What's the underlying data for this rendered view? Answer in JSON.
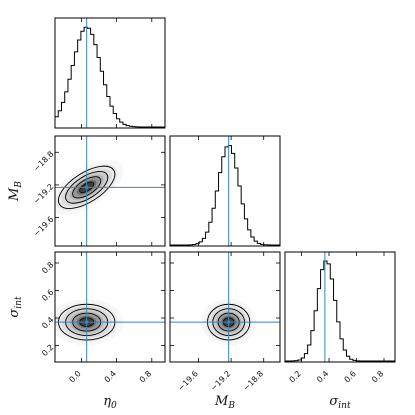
{
  "chart_data": {
    "type": "corner",
    "parameters": [
      {
        "key": "eta0",
        "label": "η",
        "subscript": "0",
        "range": [
          -0.3,
          0.95
        ],
        "ticks": [
          0.0,
          0.4,
          0.8
        ],
        "tick_labels": [
          "0.0",
          "0.4",
          "0.8"
        ],
        "truth": 0.06,
        "mean": 0.06,
        "sd": 0.16
      },
      {
        "key": "MB",
        "label": "M",
        "subscript": "B",
        "range": [
          -19.95,
          -18.6
        ],
        "ticks": [
          -19.6,
          -19.2,
          -18.8
        ],
        "tick_labels": [
          "−19.6",
          "−19.2",
          "−18.8"
        ],
        "truth": -19.23,
        "mean": -19.23,
        "sd": 0.13
      },
      {
        "key": "sigma_int",
        "label": "σ",
        "subscript": "int",
        "range": [
          0.08,
          0.88
        ],
        "ticks": [
          0.2,
          0.4,
          0.6,
          0.8
        ],
        "tick_labels": [
          "0.2",
          "0.4",
          "0.6",
          "0.8"
        ],
        "truth": 0.37,
        "mean": 0.37,
        "sd": 0.065
      }
    ],
    "correlations": {
      "eta0_MB": 0.62,
      "eta0_sigma_int": 0.0,
      "MB_sigma_int": 0.0
    },
    "contour_levels_sigma": [
      0.5,
      1,
      1.5,
      2
    ],
    "histogram_style": "step",
    "truth_line_color": "#3b84b5",
    "contour_color": "#000000"
  }
}
